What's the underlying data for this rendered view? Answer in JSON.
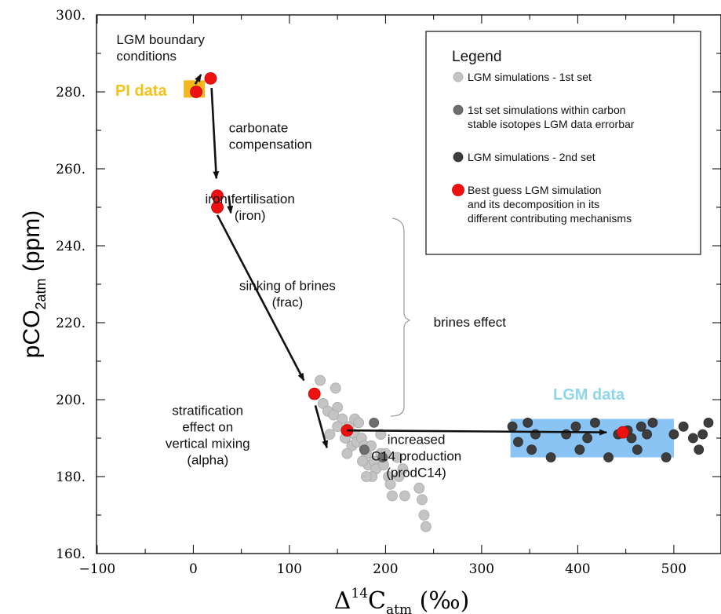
{
  "chart_data": {
    "type": "scatter",
    "xlim": [
      -100,
      540
    ],
    "ylim": [
      160,
      300
    ],
    "x_ticks": [
      -100,
      0,
      100,
      200,
      300,
      400,
      500
    ],
    "x_tick_labels": [
      "−100",
      "0",
      "100",
      "200",
      "300",
      "400",
      "500"
    ],
    "y_ticks": [
      160,
      180,
      200,
      220,
      240,
      260,
      280,
      300
    ],
    "y_tick_labels": [
      "160.",
      "180.",
      "200.",
      "220.",
      "240.",
      "260.",
      "280.",
      "300."
    ],
    "ylabel": {
      "main": "pCO",
      "sub": "2atm",
      "tail": " (ppm)"
    },
    "xlabel": {
      "delta": "Δ",
      "sup": "14",
      "main": "C",
      "sub": "atm",
      "tail": " (‰)"
    },
    "colors": {
      "set1": "#c4c4c4",
      "set1_within": "#6e6e6e",
      "set2": "#3d3d3d",
      "best": "#ee1111",
      "pi_box": "#f5b81c",
      "lgm_box": "#89c4f4"
    },
    "pi_data": {
      "label": "PI data",
      "x": [
        -10,
        12
      ],
      "y": [
        278.5,
        283
      ]
    },
    "lgm_data": {
      "label": "LGM data",
      "x": [
        330,
        500
      ],
      "y": [
        185,
        195
      ]
    },
    "legend": {
      "title": "Legend",
      "entries": [
        {
          "series": "set1",
          "lines": [
            "LGM simulations - 1st set"
          ]
        },
        {
          "series": "set1_within",
          "lines": [
            "1st set simulations within carbon",
            "stable isotopes LGM data errorbar"
          ]
        },
        {
          "series": "set2",
          "lines": [
            "LGM simulations - 2nd set"
          ]
        },
        {
          "series": "best",
          "lines": [
            "Best guess LGM simulation",
            "and its decomposition in its",
            "different contributing mechanisms"
          ]
        }
      ]
    },
    "series": [
      {
        "key": "set1",
        "points": [
          [
            132,
            205
          ],
          [
            135,
            199
          ],
          [
            140,
            197
          ],
          [
            148,
            203
          ],
          [
            150,
            198
          ],
          [
            146,
            196
          ],
          [
            142,
            191
          ],
          [
            155,
            195
          ],
          [
            158,
            190
          ],
          [
            150,
            193
          ],
          [
            162,
            193
          ],
          [
            165,
            188
          ],
          [
            160,
            186
          ],
          [
            168,
            195
          ],
          [
            168,
            191
          ],
          [
            170,
            189
          ],
          [
            175,
            190
          ],
          [
            172,
            194
          ],
          [
            178,
            188
          ],
          [
            180,
            186
          ],
          [
            182,
            183
          ],
          [
            176,
            184
          ],
          [
            185,
            188
          ],
          [
            188,
            184
          ],
          [
            190,
            182
          ],
          [
            186,
            180
          ],
          [
            180,
            180
          ],
          [
            195,
            191
          ],
          [
            195,
            186
          ],
          [
            198,
            183
          ],
          [
            200,
            186
          ],
          [
            203,
            180
          ],
          [
            205,
            178
          ],
          [
            207,
            175
          ],
          [
            212,
            185
          ],
          [
            214,
            180
          ],
          [
            218,
            182
          ],
          [
            220,
            175
          ],
          [
            235,
            177
          ],
          [
            238,
            174
          ],
          [
            240,
            170
          ],
          [
            242,
            167
          ]
        ]
      },
      {
        "key": "set1_within",
        "points": [
          [
            178,
            187
          ],
          [
            188,
            194
          ],
          [
            197,
            185
          ]
        ]
      },
      {
        "key": "set2",
        "points": [
          [
            332,
            193
          ],
          [
            338,
            189
          ],
          [
            348,
            194
          ],
          [
            352,
            187
          ],
          [
            356,
            191
          ],
          [
            372,
            185
          ],
          [
            388,
            191
          ],
          [
            398,
            193
          ],
          [
            402,
            187
          ],
          [
            410,
            190
          ],
          [
            418,
            194
          ],
          [
            432,
            185
          ],
          [
            442,
            191
          ],
          [
            452,
            192
          ],
          [
            456,
            190
          ],
          [
            462,
            187
          ],
          [
            466,
            193
          ],
          [
            472,
            191
          ],
          [
            478,
            194
          ],
          [
            492,
            185
          ],
          [
            500,
            191
          ],
          [
            510,
            193
          ],
          [
            520,
            190
          ],
          [
            526,
            187
          ],
          [
            530,
            191
          ],
          [
            536,
            194
          ]
        ]
      },
      {
        "key": "best",
        "points": [
          [
            3,
            280
          ],
          [
            18,
            283.5
          ],
          [
            25,
            253
          ],
          [
            25,
            250
          ],
          [
            126,
            201.5
          ],
          [
            160,
            192
          ],
          [
            447,
            191.5
          ]
        ]
      }
    ],
    "arrows": [
      [
        [
          2,
          282
        ],
        [
          8,
          284.5
        ]
      ],
      [
        [
          19,
          281
        ],
        [
          24,
          257.5
        ]
      ],
      [
        [
          37,
          253
        ],
        [
          39,
          248.5
        ]
      ],
      [
        [
          25,
          248
        ],
        [
          115,
          205
        ]
      ],
      [
        [
          127,
          198.5
        ],
        [
          139,
          187.5
        ]
      ],
      [
        [
          160,
          192
        ],
        [
          430,
          191.5
        ]
      ]
    ],
    "annotations": [
      {
        "lines": [
          "LGM boundary",
          "conditions"
        ],
        "x": -80,
        "y": 292.5
      },
      {
        "lines": [
          "carbonate",
          "compensation"
        ],
        "x": 37,
        "y": 269.5
      },
      {
        "lines": [
          "iron fertilisation",
          "(iron)"
        ],
        "x": 59,
        "y": 251,
        "center": true
      },
      {
        "lines": [
          "sinking of brines",
          "(frac)"
        ],
        "x": 98,
        "y": 228.5,
        "center": true
      },
      {
        "lines": [
          "brines effect"
        ],
        "x": 250,
        "y": 219
      },
      {
        "lines": [
          "stratification",
          "effect on",
          "vertical mixing",
          "(alpha)"
        ],
        "x": 15,
        "y": 196,
        "center": true
      },
      {
        "lines": [
          "increased",
          "C14 production",
          "(prodC14)"
        ],
        "x": 232,
        "y": 188.5,
        "center": true
      }
    ]
  }
}
